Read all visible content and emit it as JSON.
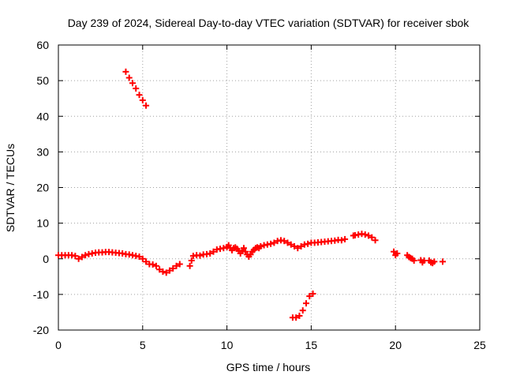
{
  "chart_data": {
    "type": "scatter",
    "title": "Day 239 of 2024, Sidereal Day-to-day VTEC variation (SDTVAR) for receiver sbok",
    "xlabel": "GPS time / hours",
    "ylabel": "SDTVAR / TECUs",
    "xlim": [
      0,
      25
    ],
    "ylim": [
      -20,
      60
    ],
    "xticks": [
      0,
      5,
      10,
      15,
      20,
      25
    ],
    "yticks": [
      -20,
      -10,
      0,
      10,
      20,
      30,
      40,
      50,
      60
    ],
    "grid": true,
    "marker": "+",
    "color": "#ff0000",
    "series": [
      {
        "name": "SDTVAR",
        "x": [
          0.0,
          0.2,
          0.4,
          0.6,
          0.8,
          1.0,
          1.2,
          1.4,
          1.6,
          1.8,
          2.0,
          2.2,
          2.4,
          2.6,
          2.8,
          3.0,
          3.2,
          3.4,
          3.6,
          3.8,
          4.0,
          4.2,
          4.4,
          4.6,
          4.8,
          5.0,
          5.2,
          5.4,
          5.6,
          5.8,
          6.0,
          6.2,
          6.4,
          6.6,
          6.8,
          7.0,
          7.2,
          7.8,
          7.9,
          8.0,
          8.2,
          8.4,
          8.6,
          8.8,
          9.0,
          9.2,
          9.4,
          9.6,
          9.8,
          10.0,
          10.1,
          10.2,
          10.3,
          10.4,
          10.5,
          10.6,
          10.7,
          10.8,
          10.9,
          11.0,
          11.1,
          11.2,
          11.3,
          11.4,
          11.5,
          11.6,
          11.7,
          11.8,
          11.9,
          12.0,
          12.2,
          12.4,
          12.6,
          12.8,
          13.0,
          13.2,
          13.4,
          13.6,
          13.8,
          14.0,
          14.2,
          14.4,
          14.6,
          14.8,
          15.0,
          15.2,
          15.4,
          15.6,
          15.8,
          16.0,
          16.2,
          16.4,
          16.6,
          16.8,
          17.0,
          17.5,
          17.6,
          17.8,
          18.0,
          18.2,
          18.4,
          18.6,
          18.8,
          19.9,
          20.0,
          20.1,
          20.7,
          20.8,
          20.9,
          21.0,
          21.1,
          21.5,
          21.6,
          21.7,
          22.0,
          22.1,
          22.2,
          22.3,
          22.8,
          4.0,
          4.2,
          4.4,
          4.6,
          4.8,
          5.0,
          5.2,
          13.9,
          14.1,
          14.3,
          14.5,
          14.7,
          14.9,
          15.1
        ],
        "y": [
          1.0,
          1.0,
          1.0,
          1.0,
          1.0,
          0.8,
          0.0,
          0.5,
          1.0,
          1.3,
          1.5,
          1.7,
          1.8,
          1.8,
          1.9,
          1.9,
          1.8,
          1.7,
          1.6,
          1.5,
          1.3,
          1.2,
          1.0,
          0.8,
          0.6,
          0.0,
          -0.8,
          -1.5,
          -1.6,
          -2.0,
          -3.0,
          -3.6,
          -3.9,
          -3.3,
          -2.7,
          -2.0,
          -1.5,
          -2.0,
          -0.5,
          0.8,
          1.0,
          0.9,
          1.2,
          1.3,
          1.5,
          2.0,
          2.6,
          2.8,
          3.0,
          3.3,
          3.8,
          3.0,
          2.4,
          3.0,
          3.2,
          2.8,
          2.2,
          1.5,
          2.3,
          3.0,
          2.0,
          1.2,
          0.6,
          1.2,
          2.0,
          2.5,
          3.0,
          3.2,
          3.0,
          3.5,
          3.8,
          4.0,
          4.2,
          4.5,
          5.0,
          5.2,
          5.0,
          4.5,
          4.0,
          3.5,
          3.0,
          3.5,
          4.0,
          4.2,
          4.5,
          4.5,
          4.6,
          4.7,
          4.8,
          4.9,
          5.0,
          5.1,
          5.3,
          5.2,
          5.5,
          6.5,
          6.6,
          6.8,
          7.0,
          6.8,
          6.5,
          6.0,
          5.2,
          2.0,
          1.0,
          1.5,
          1.0,
          0.5,
          0.2,
          0.0,
          -0.5,
          -0.4,
          -1.0,
          -0.5,
          -0.5,
          -1.0,
          -1.2,
          -0.8,
          -0.8,
          52.5,
          50.8,
          49.3,
          47.8,
          46.0,
          44.5,
          43.0,
          -16.5,
          -16.5,
          -16.0,
          -14.5,
          -12.5,
          -10.5,
          -9.8
        ]
      }
    ]
  }
}
